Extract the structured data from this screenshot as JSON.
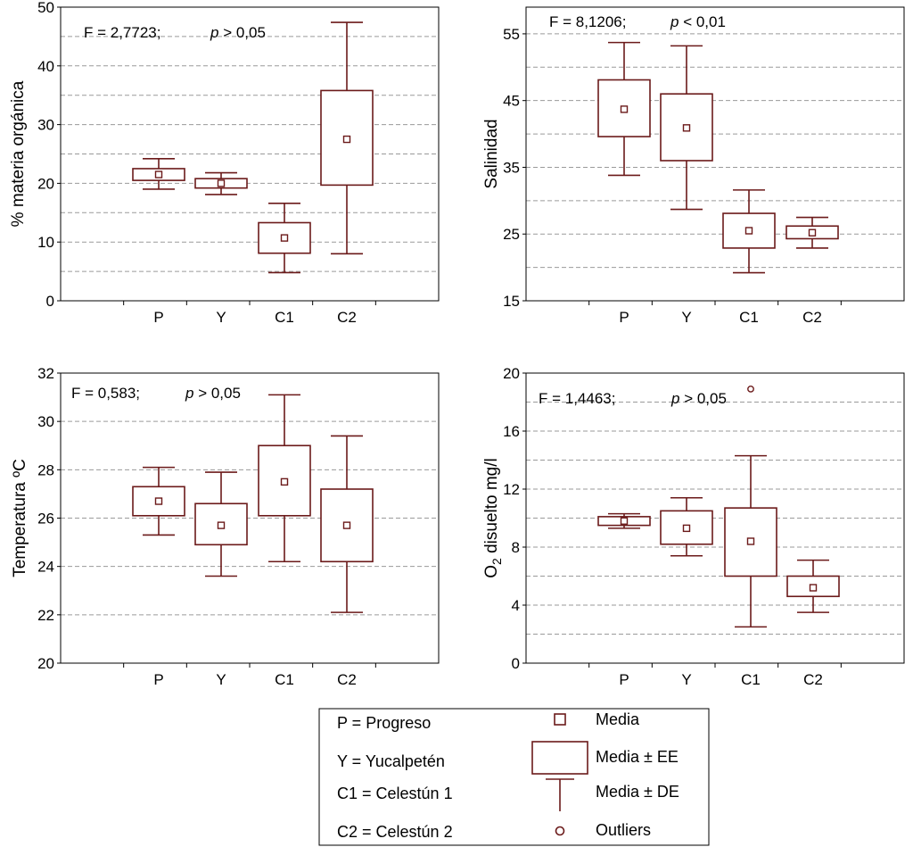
{
  "colors": {
    "box": "#6b1a1a",
    "grid": "#9a9a9a",
    "frame": "#000000"
  },
  "chart_data": [
    {
      "type": "box",
      "ylabel": "% materia orgánica",
      "ylabel_sub": "",
      "ylabel_post": "",
      "categories": [
        "P",
        "Y",
        "C1",
        "C2"
      ],
      "ylim": [
        0,
        50
      ],
      "yticks": [
        0,
        10,
        20,
        30,
        40,
        50
      ],
      "gridlines": [
        5,
        10,
        15,
        20,
        25,
        30,
        35,
        40,
        45
      ],
      "stat_f": "F = 2,7723;",
      "stat_p_sym": "p",
      "stat_p_val": "> 0,05",
      "boxes": [
        {
          "mean": 21.5,
          "ee_low": 20.5,
          "ee_high": 22.5,
          "de_low": 19.0,
          "de_high": 24.2
        },
        {
          "mean": 20.0,
          "ee_low": 19.2,
          "ee_high": 20.8,
          "de_low": 18.1,
          "de_high": 21.8
        },
        {
          "mean": 10.7,
          "ee_low": 8.1,
          "ee_high": 13.3,
          "de_low": 4.8,
          "de_high": 16.6
        },
        {
          "mean": 27.5,
          "ee_low": 19.7,
          "ee_high": 35.8,
          "de_low": 8.0,
          "de_high": 47.4
        }
      ],
      "outliers": []
    },
    {
      "type": "box",
      "ylabel": "Salinidad",
      "ylabel_sub": "",
      "ylabel_post": "",
      "categories": [
        "P",
        "Y",
        "C1",
        "C2"
      ],
      "ylim": [
        15,
        59
      ],
      "yticks": [
        15,
        25,
        35,
        45,
        55
      ],
      "gridlines": [
        20,
        25,
        30,
        35,
        40,
        45,
        50,
        55
      ],
      "stat_f": "F = 8,1206;",
      "stat_p_sym": "p",
      "stat_p_val": "< 0,01",
      "boxes": [
        {
          "mean": 43.7,
          "ee_low": 39.6,
          "ee_high": 48.1,
          "de_low": 33.8,
          "de_high": 53.7
        },
        {
          "mean": 40.9,
          "ee_low": 36.0,
          "ee_high": 46.0,
          "de_low": 28.7,
          "de_high": 53.2
        },
        {
          "mean": 25.5,
          "ee_low": 22.9,
          "ee_high": 28.1,
          "de_low": 19.2,
          "de_high": 31.6
        },
        {
          "mean": 25.2,
          "ee_low": 24.3,
          "ee_high": 26.2,
          "de_low": 22.9,
          "de_high": 27.5
        }
      ],
      "outliers": []
    },
    {
      "type": "box",
      "ylabel": "Temperatura ºC",
      "ylabel_sub": "",
      "ylabel_post": "",
      "categories": [
        "P",
        "Y",
        "C1",
        "C2"
      ],
      "ylim": [
        20,
        32
      ],
      "yticks": [
        20,
        22,
        24,
        26,
        28,
        30,
        32
      ],
      "gridlines": [
        22,
        24,
        26,
        28,
        30
      ],
      "stat_f": "F = 0,583;",
      "stat_p_sym": "p",
      "stat_p_val": "> 0,05",
      "boxes": [
        {
          "mean": 26.7,
          "ee_low": 26.1,
          "ee_high": 27.3,
          "de_low": 25.3,
          "de_high": 28.1
        },
        {
          "mean": 25.7,
          "ee_low": 24.9,
          "ee_high": 26.6,
          "de_low": 23.6,
          "de_high": 27.9
        },
        {
          "mean": 27.5,
          "ee_low": 26.1,
          "ee_high": 29.0,
          "de_low": 24.2,
          "de_high": 31.1
        },
        {
          "mean": 25.7,
          "ee_low": 24.2,
          "ee_high": 27.2,
          "de_low": 22.1,
          "de_high": 29.4
        }
      ],
      "outliers": []
    },
    {
      "type": "box",
      "ylabel": "O",
      "ylabel_sub": "2",
      "ylabel_post": " disuelto mg/l",
      "categories": [
        "P",
        "Y",
        "C1",
        "C2"
      ],
      "ylim": [
        0,
        20
      ],
      "yticks": [
        0,
        4,
        8,
        12,
        16,
        20
      ],
      "gridlines": [
        2,
        4,
        6,
        8,
        10,
        12,
        14,
        16,
        18
      ],
      "stat_f": "F = 1,4463;",
      "stat_p_sym": "p",
      "stat_p_val": "> 0,05",
      "boxes": [
        {
          "mean": 9.8,
          "ee_low": 9.5,
          "ee_high": 10.1,
          "de_low": 9.3,
          "de_high": 10.3
        },
        {
          "mean": 9.3,
          "ee_low": 8.2,
          "ee_high": 10.5,
          "de_low": 7.4,
          "de_high": 11.4
        },
        {
          "mean": 8.4,
          "ee_low": 6.0,
          "ee_high": 10.7,
          "de_low": 2.5,
          "de_high": 14.3
        },
        {
          "mean": 5.2,
          "ee_low": 4.6,
          "ee_high": 6.0,
          "de_low": 3.5,
          "de_high": 7.1
        }
      ],
      "outliers": [
        {
          "category": "C1",
          "value": 18.9
        }
      ]
    }
  ],
  "legend": {
    "abbreviations": [
      "P = Progreso",
      "Y = Yucalpetén",
      "C1 = Celestún 1",
      "C2 = Celestún 2"
    ],
    "symbols": [
      {
        "kind": "mean",
        "label": "Media"
      },
      {
        "kind": "ee",
        "label": "Media ± EE"
      },
      {
        "kind": "de",
        "label": "Media ± DE"
      },
      {
        "kind": "outlier",
        "label": "Outliers"
      }
    ]
  }
}
